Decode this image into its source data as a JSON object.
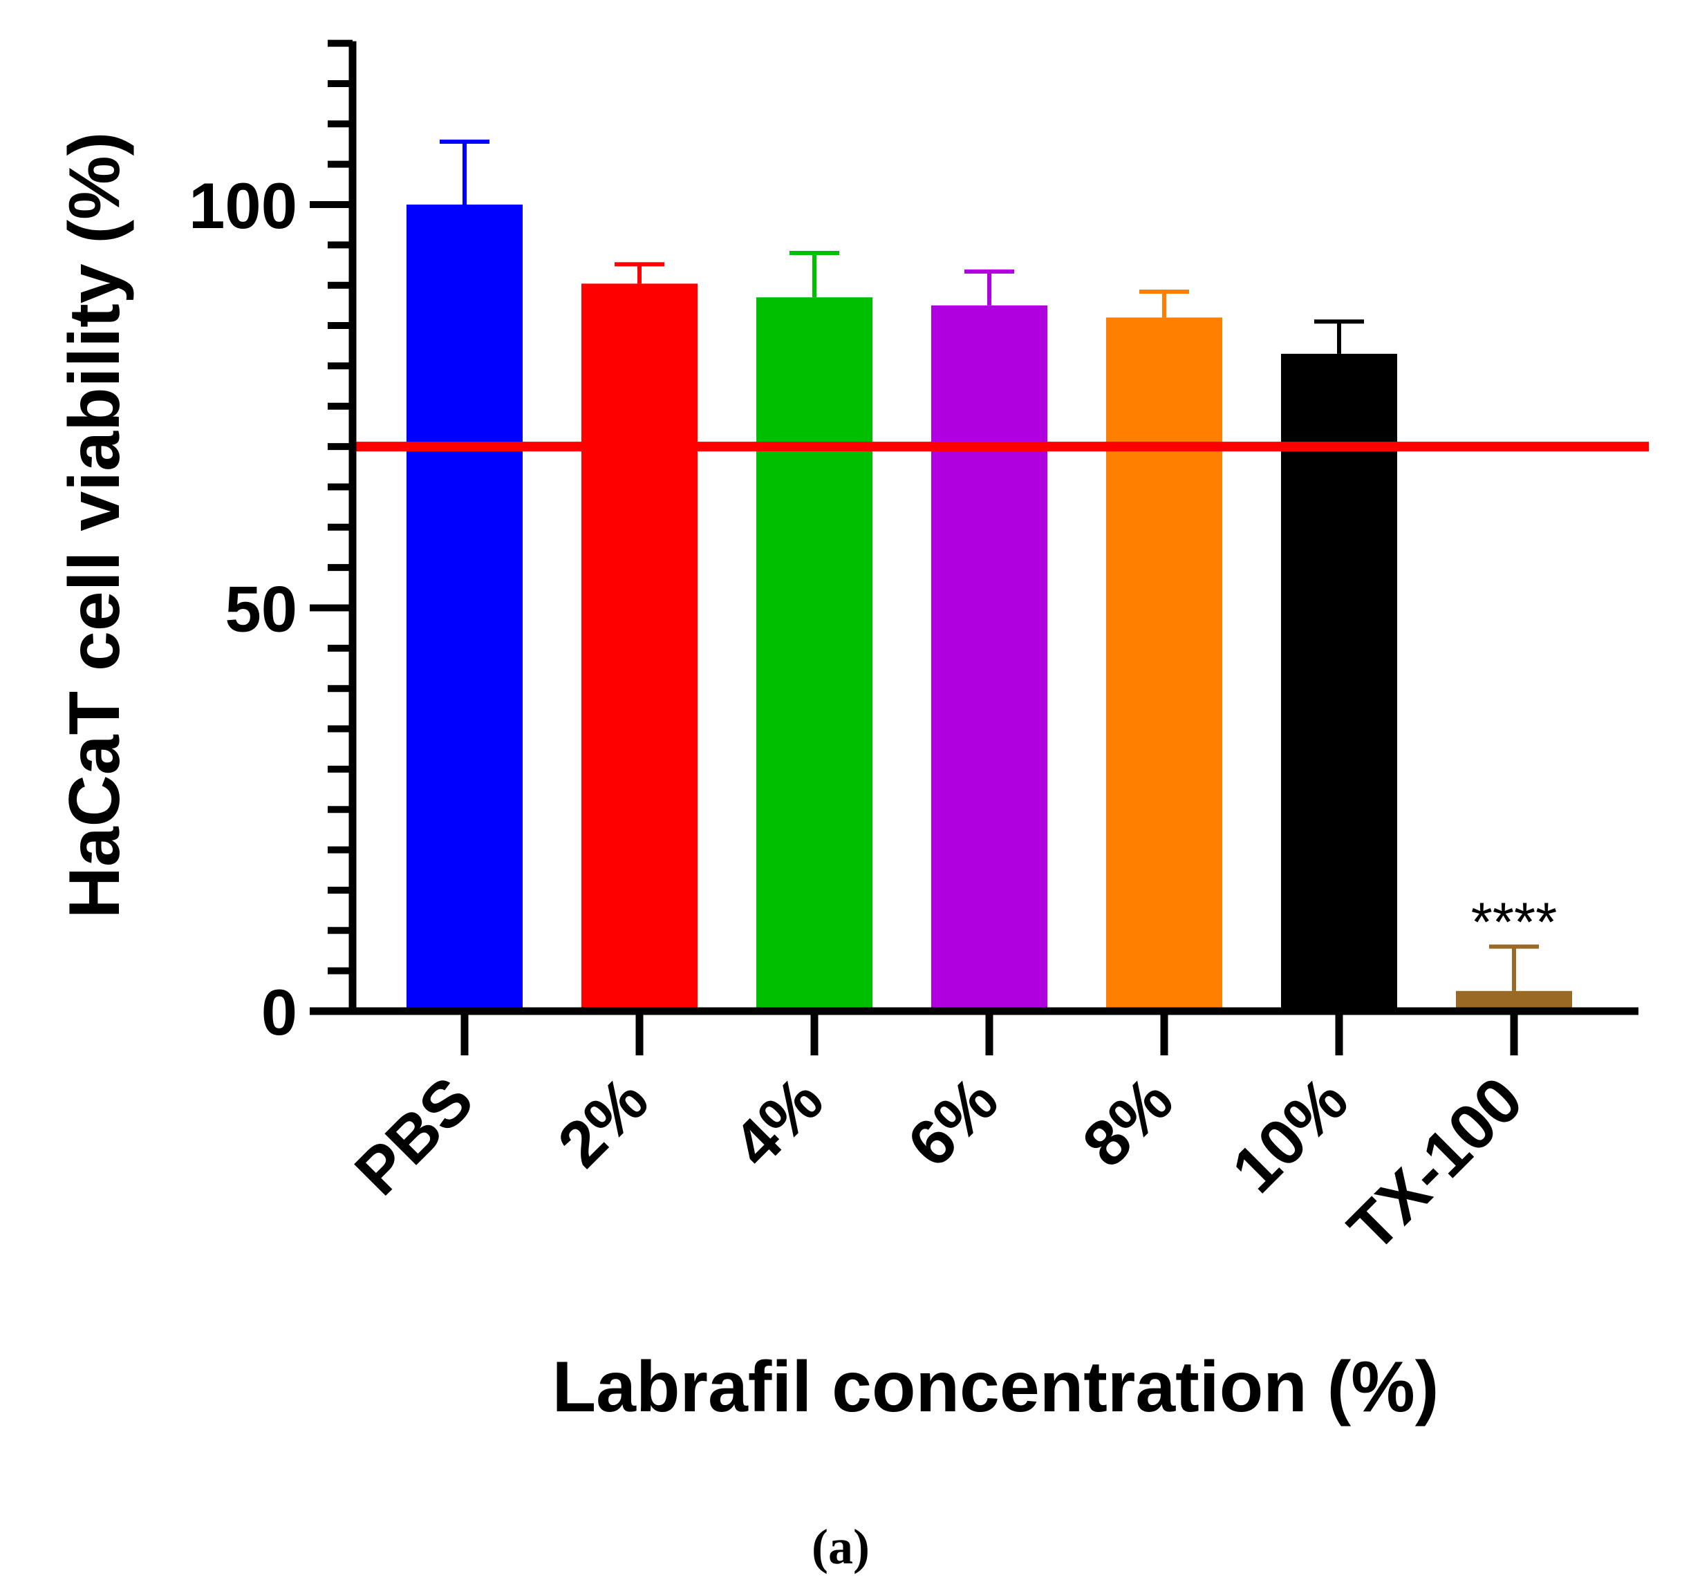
{
  "chart_data": {
    "type": "bar",
    "title": "",
    "xlabel": "Labrafil concentration (%)",
    "ylabel": "HaCaT cell viability (%)",
    "ylim": [
      0,
      120
    ],
    "yticks_major": [
      0,
      50,
      100
    ],
    "yticks_minor_step": 5,
    "categories": [
      "PBS",
      "2%",
      "4%",
      "6%",
      "8%",
      "10%",
      "TX-100"
    ],
    "values": [
      100,
      90.2,
      88.5,
      87.5,
      86,
      81.5,
      2.5
    ],
    "errors": [
      7.8,
      2.4,
      5.5,
      4.2,
      3.2,
      4,
      5.5
    ],
    "colors": [
      "#0000ff",
      "#ff0000",
      "#00bf00",
      "#b000e0",
      "#ff8000",
      "#000000",
      "#9a6a24"
    ],
    "reference_line": {
      "value": 70,
      "color": "#ff0000"
    },
    "annotations": [
      {
        "category": "TX-100",
        "text": "****"
      }
    ],
    "panel_label": "(a)"
  }
}
